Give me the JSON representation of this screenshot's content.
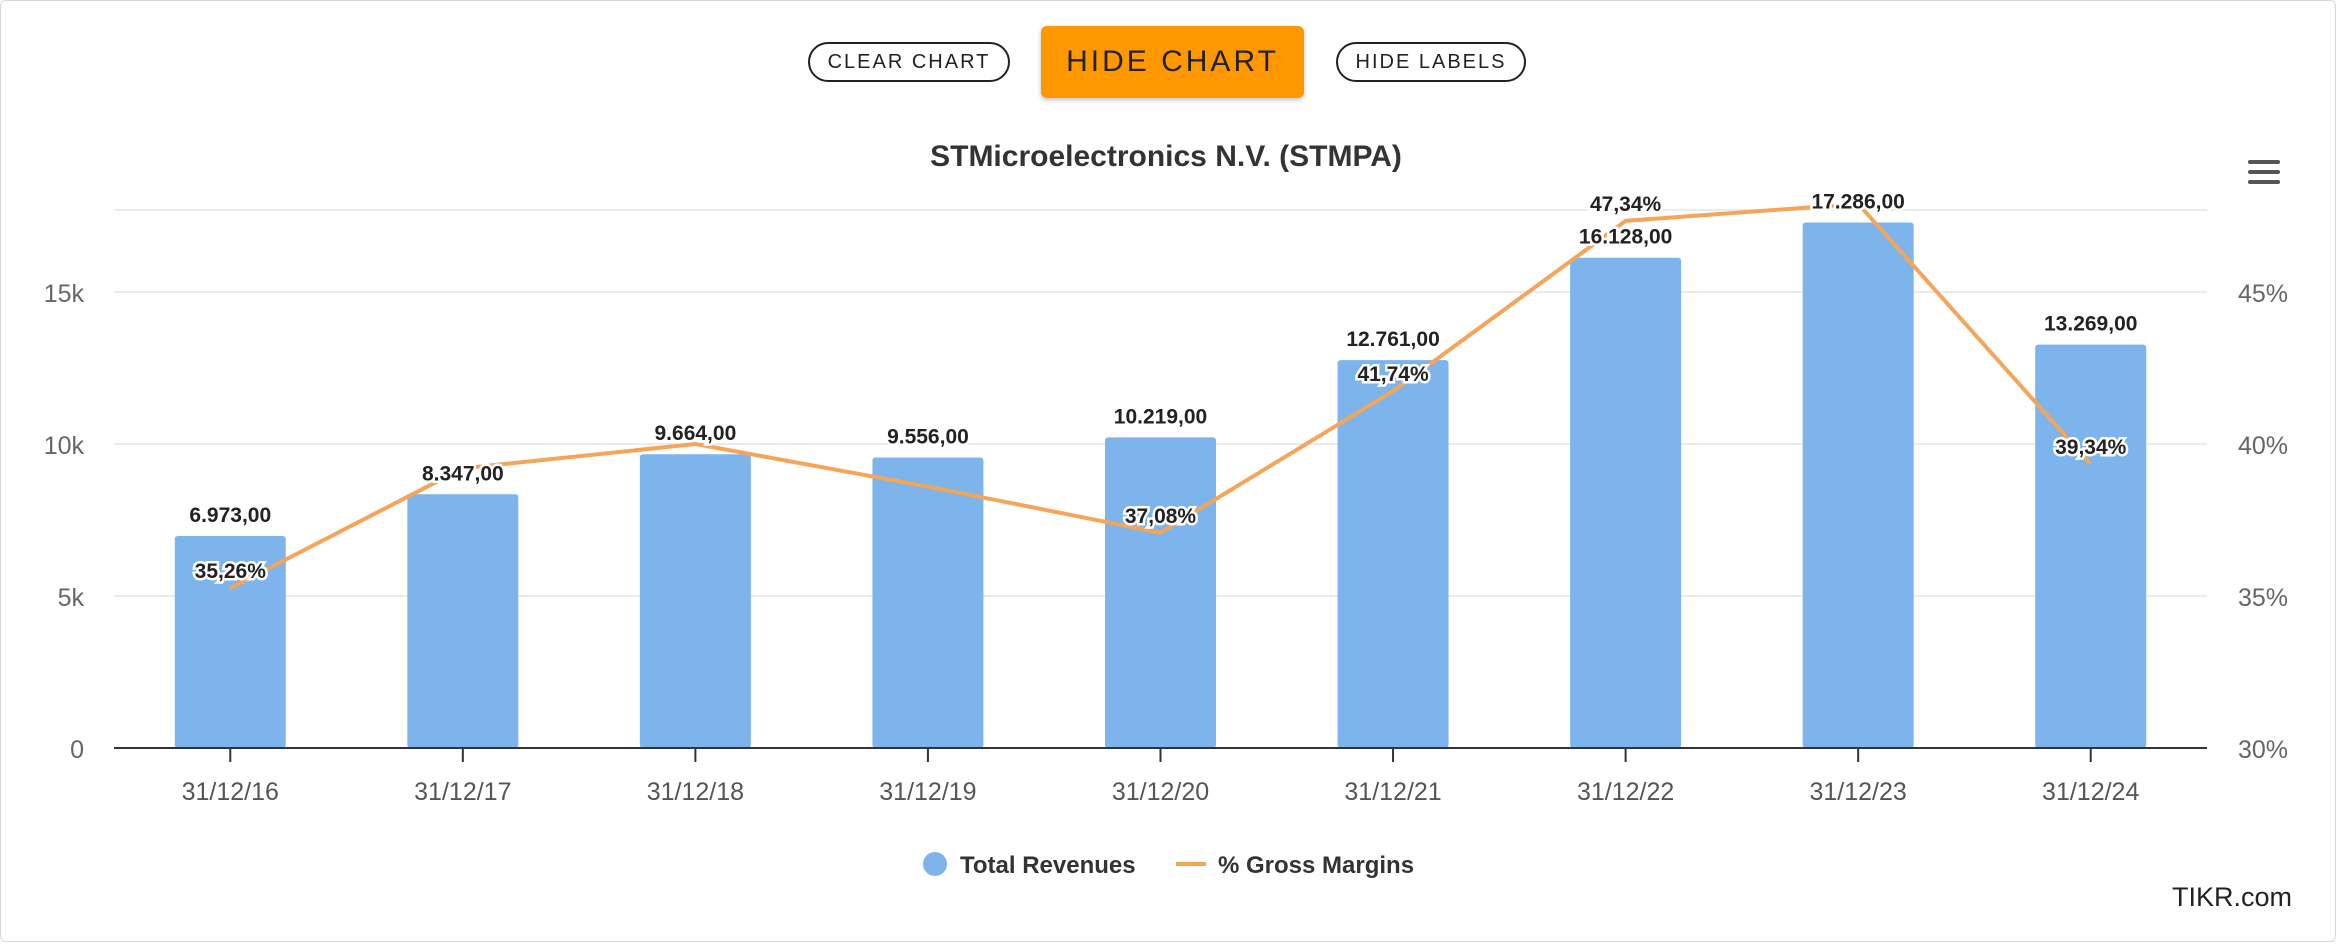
{
  "toolbar": {
    "clear_label": "CLEAR CHART",
    "hide_chart_label": "HIDE CHART",
    "hide_labels_label": "HIDE LABELS"
  },
  "credit": "TIKR.com",
  "colors": {
    "bar": "#7cb4eb",
    "line": "#f5a55a",
    "button_primary": "#ff9800"
  },
  "chart_data": {
    "type": "bar",
    "title": "STMicroelectronics N.V. (STMPA)",
    "categories": [
      "31/12/16",
      "31/12/17",
      "31/12/18",
      "31/12/19",
      "31/12/20",
      "31/12/21",
      "31/12/22",
      "31/12/23",
      "31/12/24"
    ],
    "series": [
      {
        "name": "Total Revenues",
        "type": "bar",
        "axis": "left",
        "values": [
          6973.0,
          8347.0,
          9664.0,
          9556.0,
          10219.0,
          12761.0,
          16128.0,
          17286.0,
          13269.0
        ],
        "labels": [
          "6.973,00",
          "8.347,00",
          "9.664,00",
          "9.556,00",
          "10.219,00",
          "12.761,00",
          "16.128,00",
          "17.286,00",
          "13.269,00"
        ]
      },
      {
        "name": "% Gross Margins",
        "type": "line",
        "axis": "right",
        "values": [
          35.26,
          39.2,
          40.0,
          38.6,
          37.08,
          41.74,
          47.34,
          47.9,
          39.34
        ],
        "labels": [
          "35,26%",
          "",
          "",
          "",
          "37,08%",
          "41,74%",
          "47,34%",
          "",
          "39,34%"
        ]
      }
    ],
    "y_left": {
      "min": 0,
      "max": 20000,
      "ticks": [
        0,
        5000,
        10000,
        15000
      ],
      "tick_labels": [
        "0",
        "5k",
        "10k",
        "15k"
      ]
    },
    "y_right": {
      "min": 30,
      "max": 50,
      "ticks": [
        30,
        35,
        40,
        45
      ],
      "tick_labels": [
        "30%",
        "35%",
        "40%",
        "45%"
      ]
    },
    "grid": true,
    "legend": "bottom-center"
  }
}
